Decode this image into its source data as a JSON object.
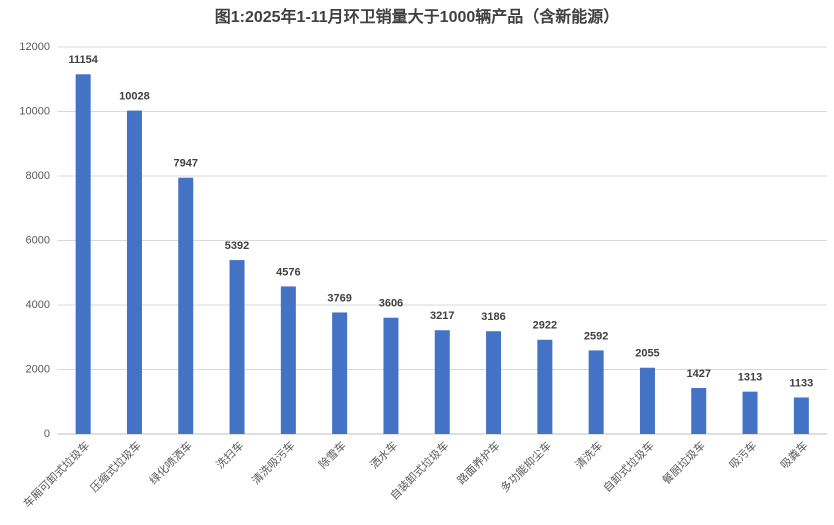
{
  "chart_data": {
    "type": "bar",
    "title": "图1:2025年1-11月环卫销量大于1000辆产品（含新能源）",
    "categories": [
      "车厢可卸式垃圾车",
      "压缩式垃圾车",
      "绿化喷洒车",
      "洗扫车",
      "清洗吸污车",
      "除雪车",
      "洒水车",
      "自装卸式垃圾车",
      "路面养护车",
      "多功能抑尘车",
      "清洗车",
      "自卸式垃圾车",
      "餐厨垃圾车",
      "吸污车",
      "吸粪车"
    ],
    "values": [
      11154,
      10028,
      7947,
      5392,
      4576,
      3769,
      3606,
      3217,
      3186,
      2922,
      2592,
      2055,
      1427,
      1313,
      1133
    ],
    "color": "#4472c4",
    "ylim": [
      0,
      12000
    ],
    "yticks": [
      0,
      2000,
      4000,
      6000,
      8000,
      10000,
      12000
    ],
    "grid": true
  }
}
